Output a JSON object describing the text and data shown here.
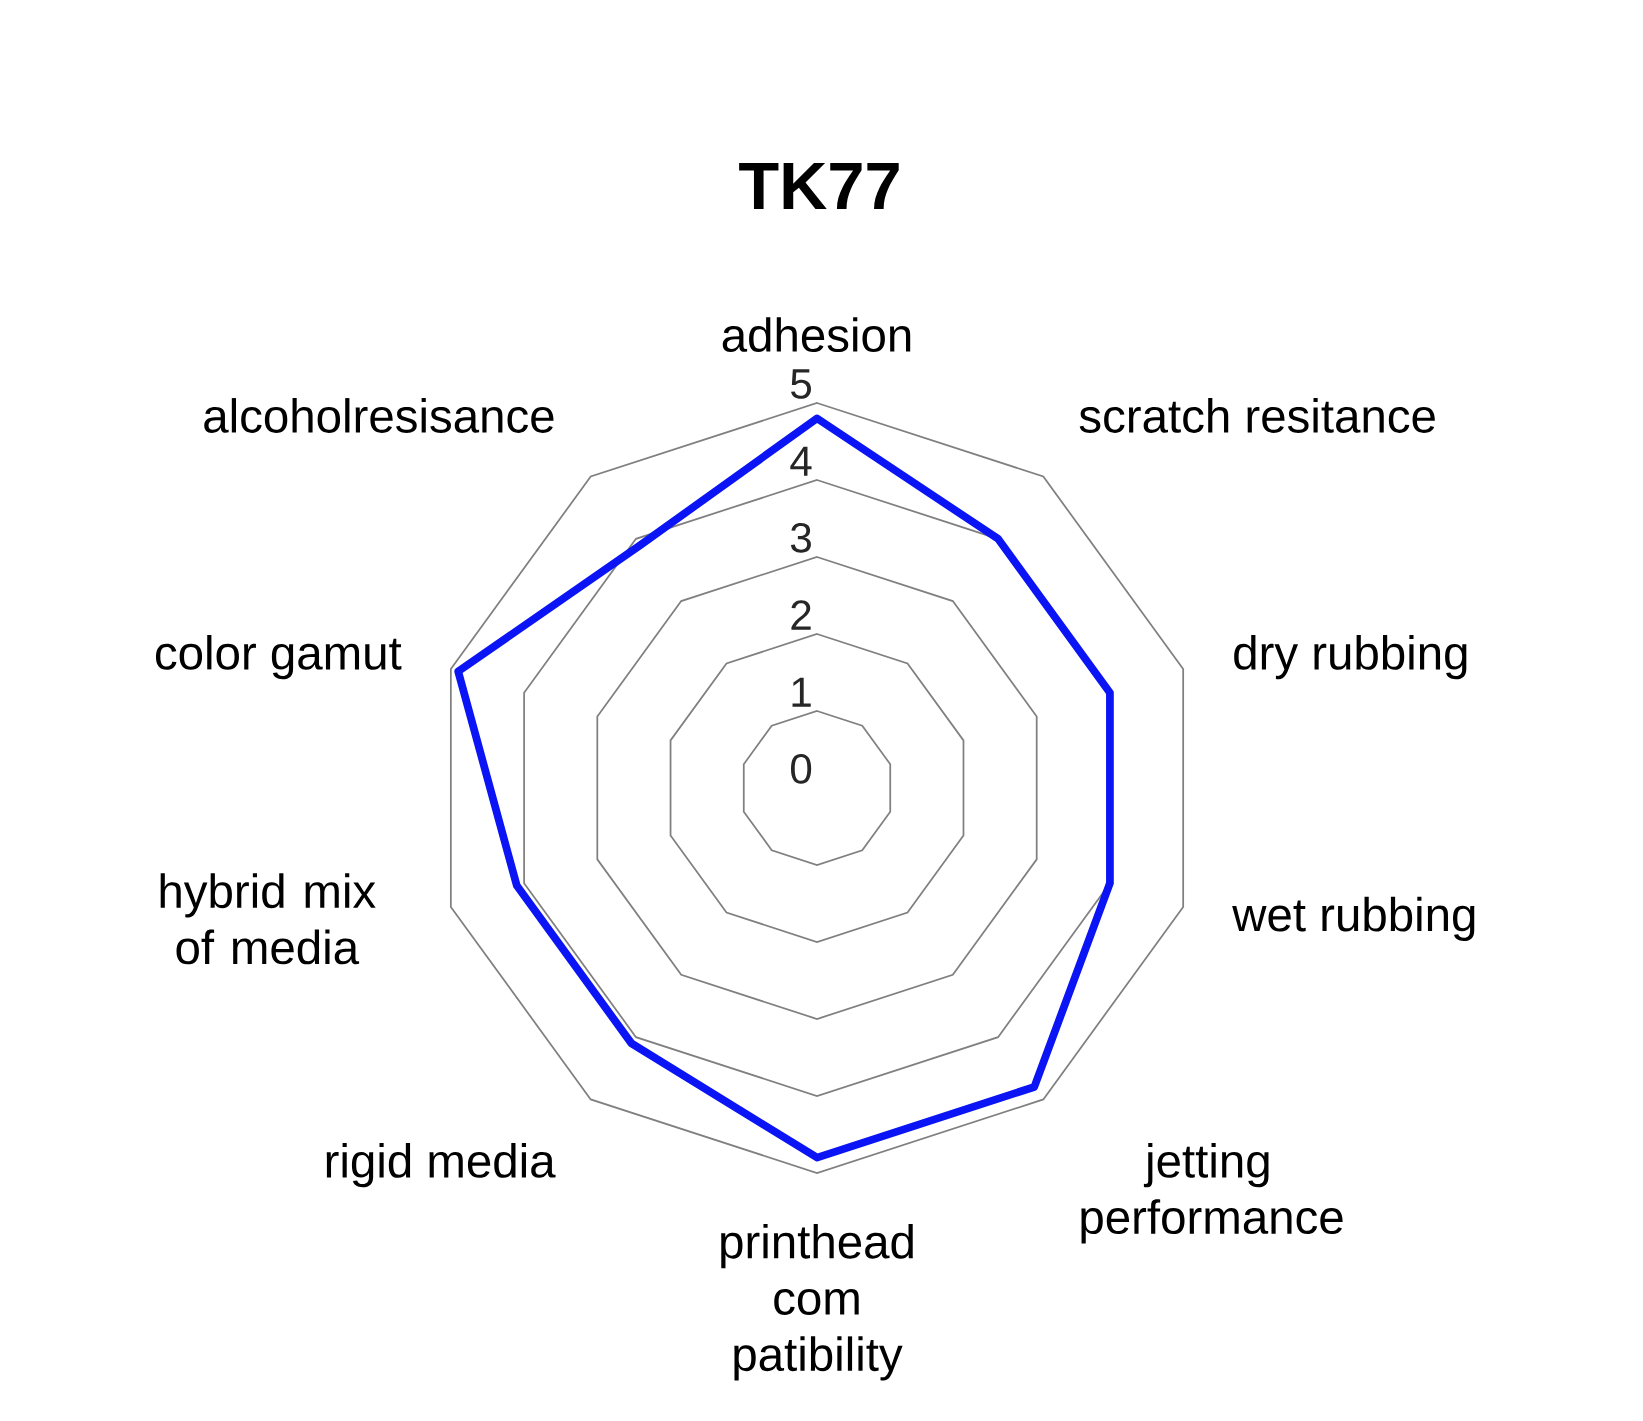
{
  "chart_data": {
    "type": "radar",
    "title": "TK77",
    "categories": [
      "adhesion",
      "scratch resitance",
      "dry rubbing",
      "wet rubbing",
      "jetting performance",
      "printhead com patibility",
      "rigid media",
      "hybrid mix of media",
      "color gamut",
      "alcoholresisance"
    ],
    "series": [
      {
        "color": "#0a14f5",
        "values": [
          4.8,
          4.0,
          4.0,
          4.0,
          4.8,
          4.8,
          4.1,
          4.1,
          4.9,
          3.9
        ]
      }
    ],
    "ylim": [
      0,
      5
    ],
    "yticks": [
      0,
      1,
      2,
      3,
      4,
      5
    ],
    "grid": true
  }
}
